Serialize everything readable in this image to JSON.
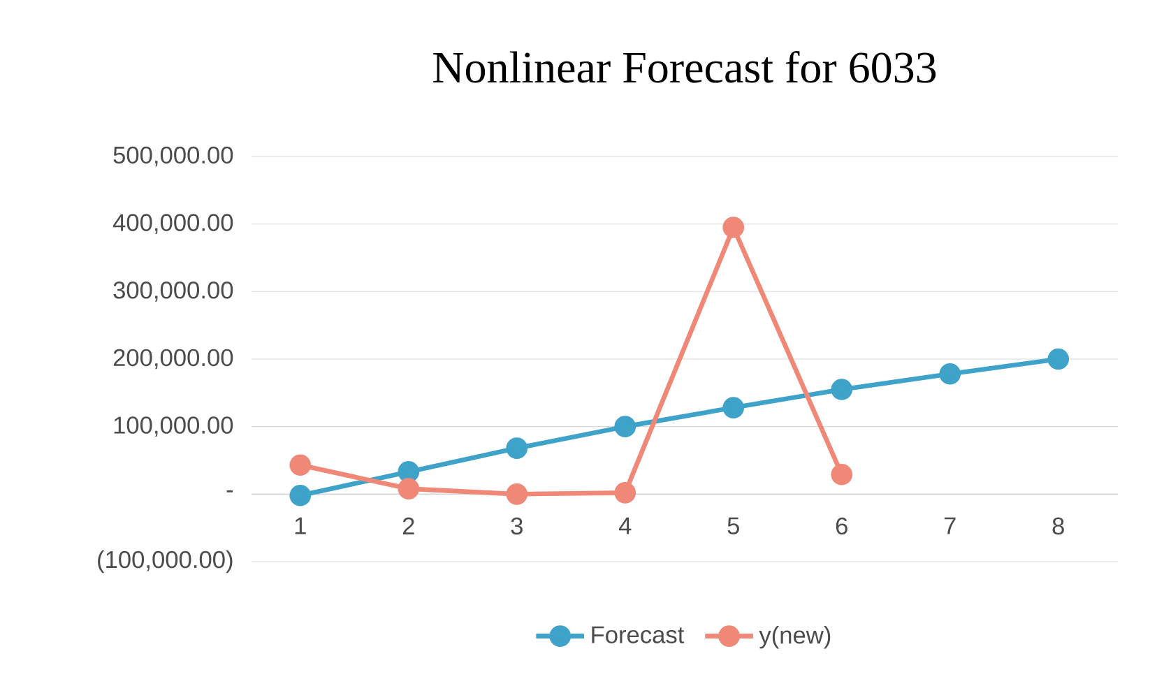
{
  "chart_data": {
    "type": "line",
    "title": "Nonlinear Forecast for 6033",
    "categories": [
      "1",
      "2",
      "3",
      "4",
      "5",
      "6",
      "7",
      "8"
    ],
    "series": [
      {
        "name": "Forecast",
        "color": "#3fa2c9",
        "values": [
          -2000,
          33000,
          68000,
          100000,
          128000,
          155000,
          178000,
          200000
        ]
      },
      {
        "name": "y(new)",
        "color": "#f08878",
        "values": [
          43000,
          8000,
          0,
          2000,
          395000,
          29000,
          null,
          null
        ]
      }
    ],
    "ylim": [
      -100000,
      500000
    ],
    "yticks": [
      {
        "value": -100000,
        "label": "(100,000.00)"
      },
      {
        "value": 0,
        "label": "-"
      },
      {
        "value": 100000,
        "label": "100,000.00"
      },
      {
        "value": 200000,
        "label": "200,000.00"
      },
      {
        "value": 300000,
        "label": "300,000.00"
      },
      {
        "value": 400000,
        "label": "400,000.00"
      },
      {
        "value": 500000,
        "label": "500,000.00"
      }
    ],
    "grid": "y",
    "legend": "bottom",
    "marker": "circle"
  }
}
